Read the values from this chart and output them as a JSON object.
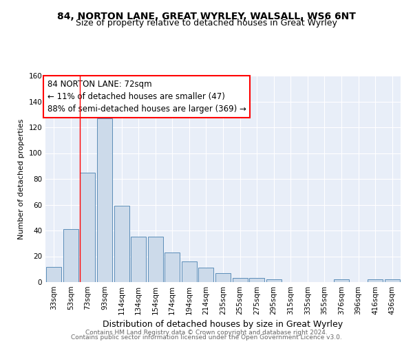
{
  "title": "84, NORTON LANE, GREAT WYRLEY, WALSALL, WS6 6NT",
  "subtitle": "Size of property relative to detached houses in Great Wyrley",
  "xlabel": "Distribution of detached houses by size in Great Wyrley",
  "ylabel": "Number of detached properties",
  "bar_color": "#ccdaea",
  "bar_edge_color": "#5b8db8",
  "bg_color": "#e8eef8",
  "grid_color": "#ffffff",
  "categories": [
    "33sqm",
    "53sqm",
    "73sqm",
    "93sqm",
    "114sqm",
    "134sqm",
    "154sqm",
    "174sqm",
    "194sqm",
    "214sqm",
    "235sqm",
    "255sqm",
    "275sqm",
    "295sqm",
    "315sqm",
    "335sqm",
    "355sqm",
    "376sqm",
    "396sqm",
    "416sqm",
    "436sqm"
  ],
  "values": [
    12,
    41,
    85,
    127,
    59,
    35,
    35,
    23,
    16,
    11,
    7,
    3,
    3,
    2,
    0,
    0,
    0,
    2,
    0,
    2,
    2
  ],
  "ylim": [
    0,
    160
  ],
  "yticks": [
    0,
    20,
    40,
    60,
    80,
    100,
    120,
    140,
    160
  ],
  "marker_bar_index": 2,
  "marker_label": "84 NORTON LANE: 72sqm",
  "annotation_line1": "← 11% of detached houses are smaller (47)",
  "annotation_line2": "88% of semi-detached houses are larger (369) →",
  "footer_line1": "Contains HM Land Registry data © Crown copyright and database right 2024.",
  "footer_line2": "Contains public sector information licensed under the Open Government Licence v3.0.",
  "title_fontsize": 10,
  "subtitle_fontsize": 9,
  "xlabel_fontsize": 9,
  "ylabel_fontsize": 8,
  "tick_fontsize": 7.5,
  "annotation_fontsize": 8.5,
  "footer_fontsize": 6.5
}
